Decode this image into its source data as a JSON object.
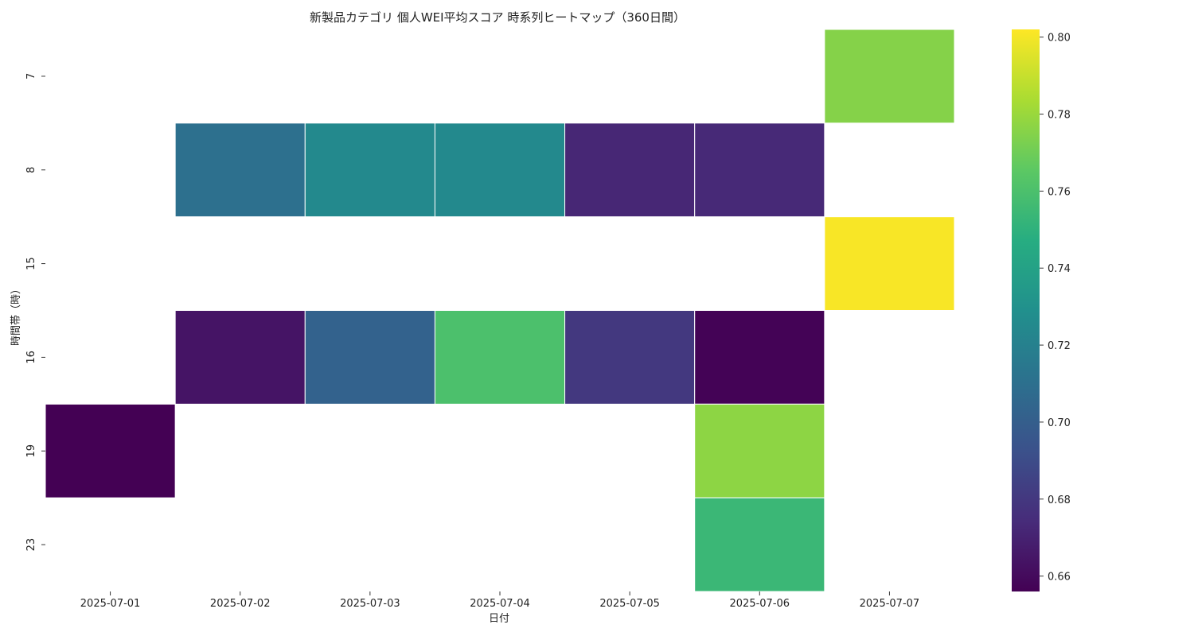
{
  "chart_data": {
    "type": "heatmap",
    "title": "新製品カテゴリ 個人WEI平均スコア 時系列ヒートマップ（360日間）",
    "xlabel": "日付",
    "ylabel": "時間帯（時）",
    "x": [
      "2025-07-01",
      "2025-07-02",
      "2025-07-03",
      "2025-07-04",
      "2025-07-05",
      "2025-07-06",
      "2025-07-07"
    ],
    "y": [
      "7",
      "8",
      "15",
      "16",
      "19",
      "23"
    ],
    "values": [
      [
        null,
        null,
        null,
        null,
        null,
        null,
        0.775
      ],
      [
        null,
        0.71,
        0.725,
        0.725,
        0.672,
        0.673,
        null
      ],
      [
        null,
        null,
        null,
        null,
        null,
        null,
        0.801
      ],
      [
        null,
        0.664,
        0.702,
        0.76,
        0.68,
        0.657,
        null
      ],
      [
        0.656,
        null,
        null,
        null,
        null,
        0.777,
        null
      ],
      [
        null,
        null,
        null,
        null,
        null,
        0.754,
        null
      ]
    ],
    "colorbar": {
      "colormap": "viridis",
      "range": [
        0.656,
        0.802
      ],
      "ticks": [
        "0.66",
        "0.68",
        "0.70",
        "0.72",
        "0.74",
        "0.76",
        "0.78",
        "0.80"
      ]
    }
  }
}
